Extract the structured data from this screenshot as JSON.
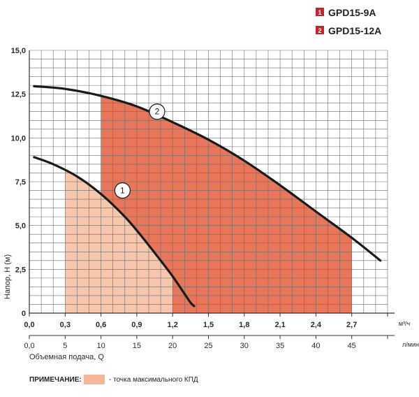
{
  "chart_data": {
    "type": "line",
    "ylabel": "Напор, Н (м)",
    "xlabel": "Объемная подача, Q",
    "x_unit": "м³/ч",
    "x2_unit": "л/мин",
    "xlim": [
      0,
      3.0
    ],
    "ylim": [
      0,
      15.0
    ],
    "x_ticks": [
      "0,0",
      "0,3",
      "0,6",
      "0,9",
      "1,2",
      "1,5",
      "1,8",
      "2,1",
      "2,4",
      "2,7"
    ],
    "x2_ticks": [
      "0,0",
      "5",
      "10",
      "15",
      "20",
      "25",
      "30",
      "35",
      "40",
      "45"
    ],
    "y_ticks": [
      "0",
      "2,5",
      "5,0",
      "7,5",
      "10,0",
      "12,5",
      "15,0"
    ],
    "grid": true,
    "legend_position": "top-right",
    "legend": [
      {
        "num": "1",
        "label": "GPD15-9A",
        "color": "#c0282d"
      },
      {
        "num": "2",
        "label": "GPD15-12A",
        "color": "#c0282d"
      }
    ],
    "series": [
      {
        "name": "GPD15-9A",
        "tag": "1",
        "x": [
          0.04,
          0.2,
          0.4,
          0.6,
          0.8,
          0.95,
          1.1,
          1.2,
          1.3,
          1.35,
          1.38
        ],
        "y": [
          8.9,
          8.5,
          7.8,
          6.8,
          5.5,
          4.3,
          3.0,
          2.1,
          1.1,
          0.6,
          0.4
        ],
        "tag_x": 0.78,
        "tag_y": 7.0
      },
      {
        "name": "GPD15-12A",
        "tag": "2",
        "x": [
          0.04,
          0.3,
          0.6,
          0.9,
          1.2,
          1.5,
          1.8,
          2.1,
          2.4,
          2.7,
          2.94
        ],
        "y": [
          12.95,
          12.8,
          12.4,
          11.8,
          10.9,
          9.9,
          8.7,
          7.3,
          5.8,
          4.3,
          3.0
        ],
        "tag_x": 1.07,
        "tag_y": 11.5
      }
    ],
    "efficiency_zones": [
      {
        "series": "GPD15-9A",
        "x_start": 0.3,
        "x_end": 1.2,
        "color": "#f6c6ad"
      },
      {
        "series": "GPD15-12A",
        "x_start": 0.6,
        "x_end": 2.7,
        "color": "#e8765a"
      }
    ],
    "colors": {
      "grid": "#6b6b6b",
      "curve": "#1a1a1a",
      "axis": "#333333"
    }
  },
  "note": {
    "label": "ПРИМЕЧАНИЕ:",
    "text": "- точка максимального КПД",
    "swatch_color": "#f6b69a"
  }
}
